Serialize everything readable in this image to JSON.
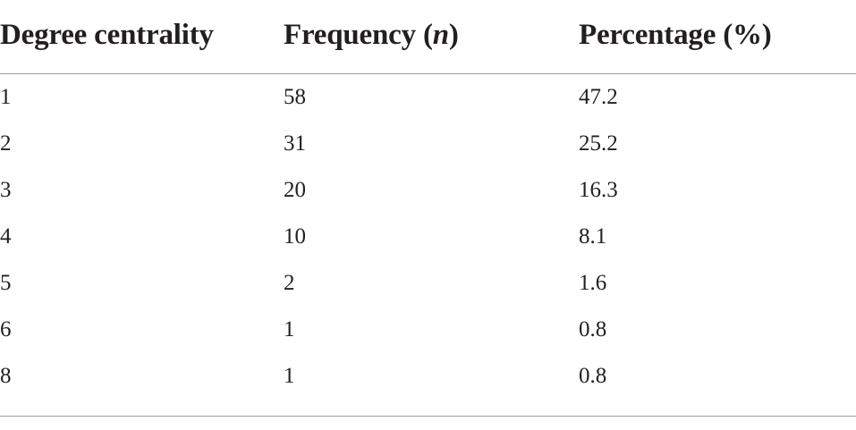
{
  "table": {
    "headers": {
      "col1": "Degree centrality",
      "col2_prefix": "Frequency (",
      "col2_italic": "n",
      "col2_suffix": ")",
      "col3": "Percentage (%)"
    },
    "rows": [
      {
        "degree": "1",
        "frequency": "58",
        "percentage": "47.2"
      },
      {
        "degree": "2",
        "frequency": "31",
        "percentage": "25.2"
      },
      {
        "degree": "3",
        "frequency": "20",
        "percentage": "16.3"
      },
      {
        "degree": "4",
        "frequency": "10",
        "percentage": "8.1"
      },
      {
        "degree": "5",
        "frequency": "2",
        "percentage": "1.6"
      },
      {
        "degree": "6",
        "frequency": "1",
        "percentage": "0.8"
      },
      {
        "degree": "8",
        "frequency": "1",
        "percentage": "0.8"
      }
    ]
  }
}
